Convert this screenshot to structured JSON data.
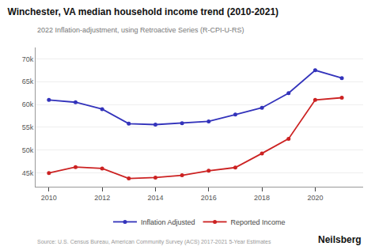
{
  "chart_data": {
    "type": "line",
    "title": "Winchester, VA median household income trend (2010-2021)",
    "subtitle": "2022 Inflation-adjustment, using Retroactive Series (R-CPI-U-RS)",
    "x": [
      2010,
      2011,
      2012,
      2013,
      2014,
      2015,
      2016,
      2017,
      2018,
      2019,
      2020,
      2021
    ],
    "series": [
      {
        "name": "Inflation Adjusted",
        "color": "#3333bb",
        "marker": "circle",
        "line_style": "solid",
        "values": [
          61000,
          60500,
          59000,
          55800,
          55600,
          55900,
          56300,
          57800,
          59300,
          62500,
          67500,
          65800
        ]
      },
      {
        "name": "Reported Income",
        "color": "#cc2222",
        "marker": "circle",
        "line_style": "solid",
        "values": [
          45000,
          46300,
          46000,
          43800,
          44000,
          44500,
          45500,
          46200,
          49300,
          52500,
          61000,
          61500
        ]
      }
    ],
    "xlim": [
      2009.5,
      2021.8
    ],
    "xticks": [
      2010,
      2012,
      2014,
      2016,
      2018,
      2020
    ],
    "ylim": [
      42000,
      72500
    ],
    "yticks": [
      {
        "value": 45000,
        "label": "45k"
      },
      {
        "value": 50000,
        "label": "50k"
      },
      {
        "value": 55000,
        "label": "55k"
      },
      {
        "value": 60000,
        "label": "60k"
      },
      {
        "value": 65000,
        "label": "65k"
      },
      {
        "value": 70000,
        "label": "70k"
      }
    ],
    "grid": "y",
    "legend": "bottom",
    "annotations": [
      "Source: U.S. Census Bureau, American Community Survey (ACS) 2017-2021 5-Year Estimates",
      "Neilsberg"
    ]
  }
}
